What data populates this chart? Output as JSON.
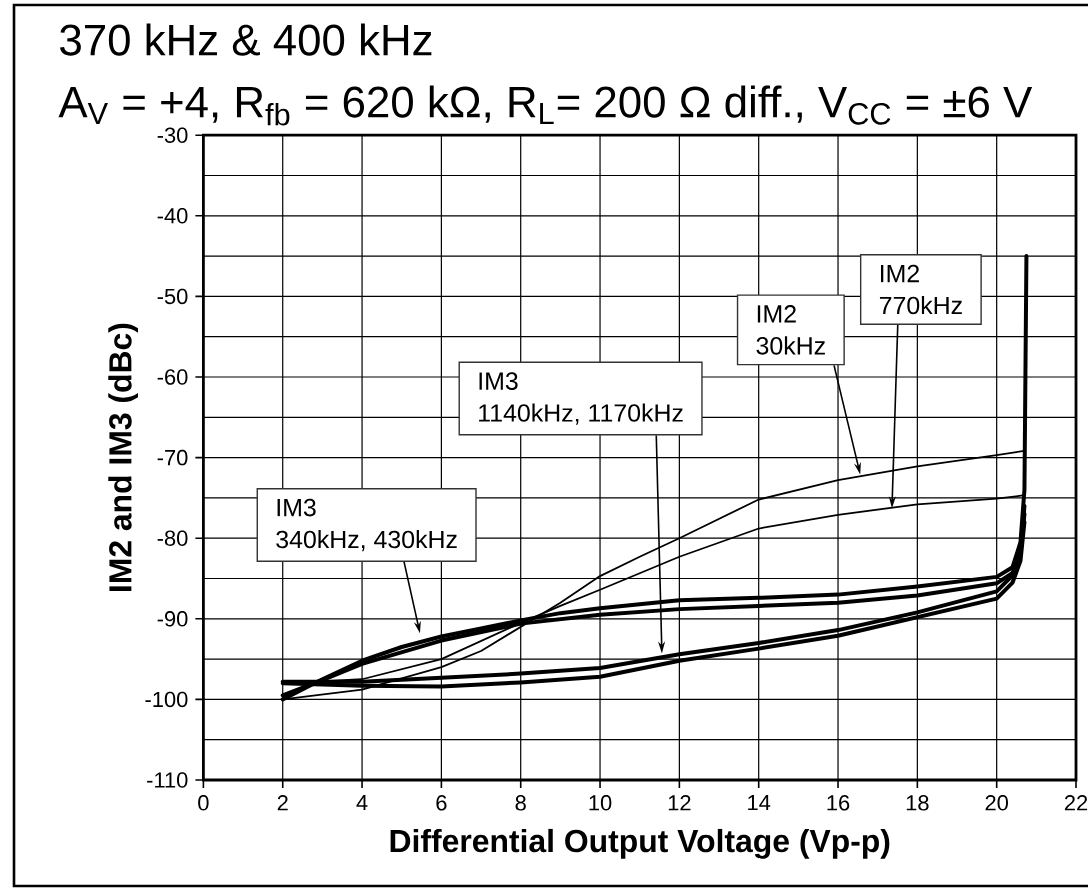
{
  "chart_data": {
    "type": "line",
    "title": "370 kHz & 400 kHz",
    "subtitle": "A$_{V}$ = +4, R$_{fb}$ = 620 kΩ, R$_{L}$= 200 Ω diff., V$_{CC}$ = ±6 V",
    "xlabel": "Differential Output Voltage (Vp-p)",
    "ylabel": "IM2 and IM3 (dBc)",
    "xlim": [
      0,
      22
    ],
    "ylim": [
      -110,
      -30
    ],
    "xticks": [
      0,
      2,
      4,
      6,
      8,
      10,
      12,
      14,
      16,
      18,
      20,
      22
    ],
    "yticks": [
      -110,
      {
        "value": -105,
        "label": null
      },
      -100,
      {
        "value": -95,
        "label": null
      },
      -90,
      {
        "value": -85,
        "label": null
      },
      -80,
      {
        "value": -75,
        "label": null
      },
      -70,
      {
        "value": -65,
        "label": null
      },
      -60,
      {
        "value": -55,
        "label": null
      },
      -50,
      {
        "value": -45,
        "label": null
      },
      -40,
      {
        "value": -35,
        "label": null
      },
      -30
    ],
    "grid": true,
    "marker": "none",
    "series": [
      {
        "color": "#000000",
        "x": [
          2,
          3,
          4,
          5,
          6,
          7,
          8,
          9,
          10,
          12,
          14,
          16,
          18,
          20,
          20.4,
          20.6,
          20.7,
          20.75
        ],
        "values": [
          -100,
          -97.5,
          -95.2,
          -93.5,
          -92.2,
          -91.2,
          -90.2,
          -89.3,
          -88.7,
          -87.7,
          -87.4,
          -87,
          -86,
          -84.8,
          -83.6,
          -80.5,
          -74,
          -45
        ]
      },
      {
        "color": "#000000",
        "x": [
          2,
          3,
          4,
          6,
          8,
          10,
          12,
          14,
          16,
          18,
          20,
          20.4,
          20.6,
          20.7
        ],
        "values": [
          -99.5,
          -97.6,
          -95.6,
          -92.7,
          -90.6,
          -89.5,
          -88.8,
          -88.4,
          -88,
          -87.1,
          -85.6,
          -84.3,
          -81.5,
          -76
        ]
      },
      {
        "color": "#000000",
        "x": [
          2,
          4,
          6,
          8,
          10,
          12,
          14,
          16,
          18,
          20,
          20.4,
          20.6,
          20.7
        ],
        "values": [
          -97.8,
          -97.8,
          -97.3,
          -96.8,
          -96.1,
          -94.4,
          -93,
          -91.4,
          -89.2,
          -86.6,
          -84.6,
          -82,
          -77
        ]
      },
      {
        "color": "#000000",
        "x": [
          2,
          4,
          6,
          8,
          10,
          12,
          14,
          16,
          18,
          20,
          20.4,
          20.6,
          20.7
        ],
        "values": [
          -98,
          -98.3,
          -98.4,
          -97.9,
          -97.2,
          -95.2,
          -93.7,
          -92.1,
          -89.8,
          -87.5,
          -85.5,
          -82.8,
          -78
        ]
      },
      {
        "color": "#000000",
        "x": [
          2,
          4,
          6,
          7,
          8,
          9,
          10,
          11,
          12,
          14,
          16,
          18,
          20,
          20.65
        ],
        "values": [
          -100,
          -98.8,
          -96,
          -94,
          -91,
          -88,
          -84.7,
          -82.3,
          -80,
          -75.2,
          -72.8,
          -71.1,
          -69.7,
          -69.2
        ]
      },
      {
        "color": "#000000",
        "x": [
          2,
          4,
          6,
          8,
          9,
          10,
          12,
          14,
          16,
          18,
          20,
          20.65
        ],
        "values": [
          -98,
          -97.5,
          -95,
          -90.5,
          -88.4,
          -86.4,
          -82.3,
          -78.8,
          -77.1,
          -75.8,
          -75.1,
          -74.7
        ]
      }
    ],
    "annotations": [
      {
        "text": "IM2 770kHz",
        "x": 17.36,
        "y": -76.3
      },
      {
        "text": "IM2 30kHz",
        "x": 16.56,
        "y": -72.1
      },
      {
        "text": "IM3 1140kHz, 1170kHz",
        "x": 11.56,
        "y": -94.3
      },
      {
        "text": "IM3 340kHz, 430kHz",
        "x": 5.46,
        "y": -91.8
      }
    ]
  }
}
